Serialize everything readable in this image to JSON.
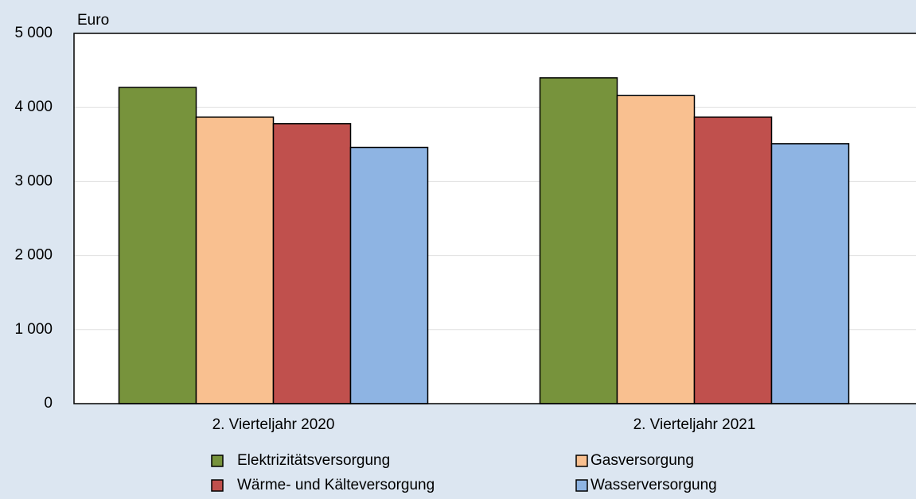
{
  "chart_data": {
    "type": "bar",
    "y_label": "Euro",
    "categories": [
      "2. Vierteljahr 2020",
      "2. Vierteljahr 2021"
    ],
    "series": [
      {
        "name": "Elektrizitätsversorgung",
        "color": "#77933c",
        "values": [
          4270,
          4400
        ]
      },
      {
        "name": "Gasversorgung",
        "color": "#f9c090",
        "values": [
          3870,
          4160
        ]
      },
      {
        "name": "Wärme- und Kälteversorgung",
        "color": "#c0504d",
        "values": [
          3780,
          3870
        ]
      },
      {
        "name": "Wasserversorgung",
        "color": "#8eb4e3",
        "values": [
          3460,
          3510
        ]
      }
    ],
    "ylim": [
      0,
      5000
    ],
    "yticks": [
      0,
      {
        "value": 1000,
        "label": "1 000"
      },
      {
        "value": 2000,
        "label": "2 000"
      },
      {
        "value": 3000,
        "label": "3 000"
      },
      {
        "value": 4000,
        "label": "4 000"
      },
      {
        "value": 5000,
        "label": "5 000"
      }
    ],
    "grid": true,
    "legend": "bottom"
  }
}
